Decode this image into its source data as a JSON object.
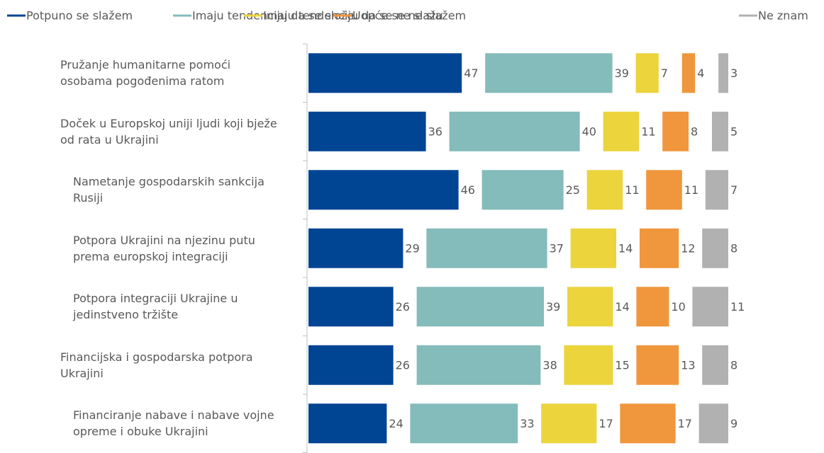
{
  "chart_data": {
    "type": "bar",
    "orientation": "horizontal",
    "stacked": true,
    "categories": [
      "Pružanje humanitarne pomoći osobama pogođenima ratom",
      "Doček u Europskoj uniji ljudi koji bježe od rata u Ukrajini",
      "Nametanje gospodarskih sankcija Rusiji",
      "Potpora Ukrajini na njezinu putu prema europskoj integraciji",
      "Potpora integraciji Ukrajine u jedinstveno tržište",
      "Financijska i gospodarska potpora Ukrajini",
      "Financiranje nabave i nabave vojne opreme i obuke Ukrajini"
    ],
    "series": [
      {
        "name": "Potpuno se slažem",
        "color": "#004494",
        "values": [
          47,
          36,
          46,
          29,
          26,
          26,
          24
        ]
      },
      {
        "name": "Imaju tendenciju da se slože",
        "color": "#84bbbb",
        "values": [
          39,
          40,
          25,
          37,
          39,
          38,
          33
        ]
      },
      {
        "name": "Imaju tendenciju da se ne slažu",
        "color": "#ecd43c",
        "values": [
          7,
          11,
          11,
          14,
          14,
          15,
          17
        ]
      },
      {
        "name": "Uopće se ne slažem",
        "color": "#f0963c",
        "values": [
          4,
          8,
          11,
          12,
          10,
          13,
          17
        ]
      },
      {
        "name": "Ne znam",
        "color": "#b1b1b1",
        "values": [
          3,
          5,
          7,
          8,
          11,
          8,
          9
        ]
      }
    ],
    "legend": "top"
  }
}
